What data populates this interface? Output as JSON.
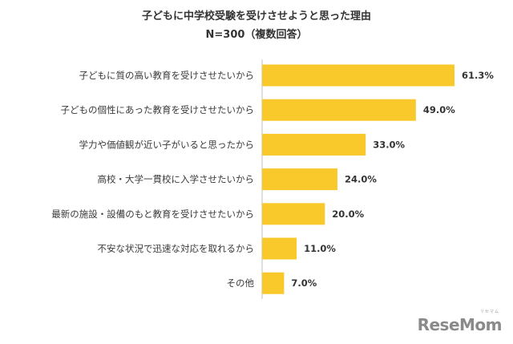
{
  "chart_data": {
    "type": "bar",
    "orientation": "horizontal",
    "title": "子どもに中学校受験を受けさせようと思った理由",
    "subtitle": "N=300（複数回答）",
    "categories": [
      "子どもに質の高い教育を受けさせたいから",
      "子どもの個性にあった教育を受けさせたいから",
      "学力や価値観が近い子がいると思ったから",
      "高校・大学一貫校に入学させたいから",
      "最新の施設・設備のもと教育を受けさせたいから",
      "不安な状況で迅速な対応を取れるから",
      "その他"
    ],
    "values": [
      61.3,
      49.0,
      33.0,
      24.0,
      20.0,
      11.0,
      7.0
    ],
    "value_labels": [
      "61.3%",
      "49.0%",
      "33.0%",
      "24.0%",
      "20.0%",
      "11.0%",
      "7.0%"
    ],
    "unit": "%",
    "xlim": [
      0,
      70
    ],
    "grid": false,
    "legend": "none",
    "bar_color": "#f9c82b",
    "axis_color": "#bfbfbf"
  },
  "watermark": {
    "text": "ReseMom",
    "subtext": "リセマム"
  }
}
